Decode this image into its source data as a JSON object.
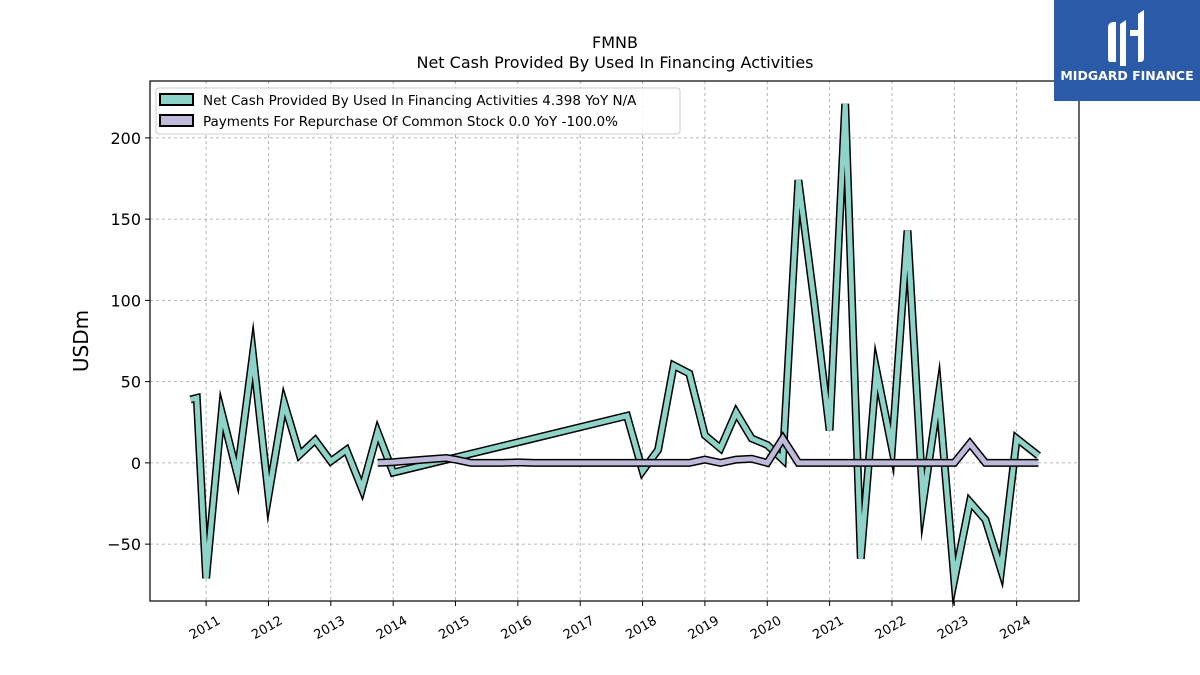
{
  "chart_data": {
    "type": "line",
    "title": "FMNB",
    "subtitle": "Net Cash Provided By Used In Financing Activities",
    "ylabel": "USDm",
    "xlabel": "",
    "ylim": [
      -85,
      235
    ],
    "yticks": [
      -50,
      0,
      50,
      100,
      150,
      200
    ],
    "ytick_labels": [
      "−50",
      "0",
      "50",
      "100",
      "150",
      "200"
    ],
    "xlim": [
      2010.1,
      2025.0
    ],
    "xticks": [
      2011,
      2012,
      2013,
      2014,
      2015,
      2016,
      2017,
      2018,
      2019,
      2020,
      2021,
      2022,
      2023,
      2024
    ],
    "xtick_labels": [
      "2011",
      "2012",
      "2013",
      "2014",
      "2015",
      "2016",
      "2017",
      "2018",
      "2019",
      "2020",
      "2021",
      "2022",
      "2023",
      "2024"
    ],
    "grid": true,
    "legend_position": "top-left",
    "series": [
      {
        "name": "Net Cash Provided By Used In Financing Activities  4.398 YoY N/A",
        "color": "#8dd3c7",
        "x": [
          2010.75,
          2010.85,
          2011.0,
          2011.25,
          2011.5,
          2011.75,
          2012.0,
          2012.25,
          2012.5,
          2012.75,
          2013.0,
          2013.25,
          2013.5,
          2013.75,
          2014.0,
          2017.75,
          2018.0,
          2018.25,
          2018.5,
          2018.75,
          2019.0,
          2019.25,
          2019.5,
          2019.75,
          2020.0,
          2020.25,
          2020.5,
          2020.75,
          2021.0,
          2021.25,
          2021.5,
          2021.75,
          2022.0,
          2022.25,
          2022.5,
          2022.75,
          2023.0,
          2023.25,
          2023.5,
          2023.75,
          2024.0,
          2024.35
        ],
        "values": [
          39,
          40,
          -71,
          31,
          -7,
          67,
          -20,
          37,
          5,
          14,
          1,
          8,
          -16,
          19,
          -6,
          29,
          -5,
          8,
          60,
          55,
          17,
          9,
          31,
          15,
          11,
          2,
          174,
          100,
          20,
          221,
          -59,
          57,
          9,
          143,
          -24,
          42,
          -72,
          -24,
          -35,
          -66,
          15,
          4.398
        ]
      },
      {
        "name": "Payments For Repurchase Of Common Stock  0.0 YoY -100.0%",
        "color": "#bebada",
        "x": [
          2013.75,
          2014.0,
          2014.5,
          2014.85,
          2015.0,
          2015.25,
          2015.5,
          2015.75,
          2016.0,
          2016.25,
          2016.5,
          2016.75,
          2017.0,
          2017.25,
          2017.5,
          2017.75,
          2018.0,
          2018.25,
          2018.5,
          2018.75,
          2019.0,
          2019.25,
          2019.5,
          2019.75,
          2020.0,
          2020.25,
          2020.5,
          2020.75,
          2021.0,
          2021.25,
          2021.5,
          2021.75,
          2022.0,
          2022.25,
          2022.5,
          2022.75,
          2023.0,
          2023.25,
          2023.5,
          2023.75,
          2024.0,
          2024.35
        ],
        "values": [
          0,
          0.5,
          2,
          3,
          2,
          0,
          0,
          0,
          0.3,
          0,
          0,
          0,
          0,
          0,
          0,
          0,
          0,
          0,
          0,
          0,
          2,
          0,
          2,
          2.5,
          0,
          15,
          0,
          0,
          0,
          0,
          0,
          0,
          0,
          0,
          0,
          0,
          0,
          12,
          0,
          0,
          0,
          0.0
        ]
      }
    ]
  },
  "logo": {
    "text": "MIDGARD FINANCE",
    "bg_color": "#2a5aa8"
  }
}
